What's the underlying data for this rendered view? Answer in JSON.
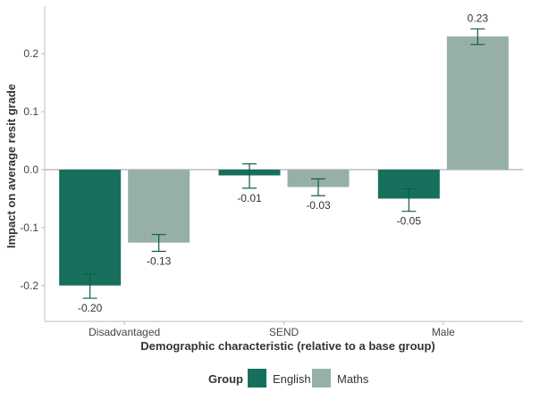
{
  "chart_data": {
    "type": "bar",
    "title": "",
    "xlabel": "Demographic characteristic (relative to a base group)",
    "ylabel": "Impact on average resit grade",
    "categories": [
      "Disadvantaged",
      "SEND",
      "Male"
    ],
    "series": [
      {
        "name": "English",
        "color": "#17705e",
        "values": [
          -0.2,
          -0.01,
          -0.05
        ],
        "labels": [
          "-0.20",
          "-0.01",
          "-0.05"
        ],
        "error_low": [
          -0.222,
          -0.032,
          -0.072
        ],
        "error_high": [
          -0.18,
          0.01,
          -0.033
        ]
      },
      {
        "name": "Maths",
        "color": "#96b0a8",
        "values": [
          -0.126,
          -0.03,
          0.23
        ],
        "labels": [
          "-0.13",
          "-0.03",
          "0.23"
        ],
        "error_low": [
          -0.141,
          -0.045,
          0.216
        ],
        "error_high": [
          -0.112,
          -0.016,
          0.243
        ]
      }
    ],
    "yticks": [
      -0.2,
      -0.1,
      0.0,
      0.1,
      0.2
    ],
    "ytick_labels": [
      "-0.2",
      "-0.1",
      "0.0",
      "0.1",
      "0.2"
    ],
    "ylim": [
      -0.262,
      0.282
    ],
    "grid": false,
    "legend": {
      "title": "Group",
      "position": "bottom"
    },
    "error_bar_color": "#0e5a4b",
    "axis_color": "#bdbdbd"
  }
}
